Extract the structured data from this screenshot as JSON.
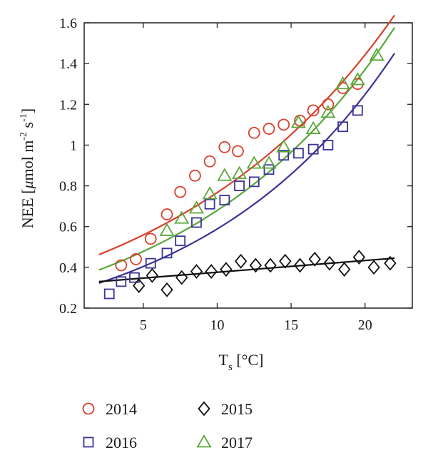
{
  "chart_data": {
    "type": "scatter",
    "xlabel": {
      "main": "T",
      "sub": "s",
      "unit": " [°C]"
    },
    "ylabel": {
      "pre": "NEE [",
      "mu": "μ",
      "mid": "mol m",
      "sup1": "-2",
      "mid2": " s",
      "sup2": "-1",
      "post": "]"
    },
    "xlim": [
      1,
      23.2
    ],
    "ylim": [
      0.2,
      1.6
    ],
    "x_ticks": [
      5,
      10,
      15,
      20
    ],
    "x_tick_labels": [
      "5",
      "10",
      "15",
      "20"
    ],
    "y_ticks": [
      0.2,
      0.4,
      0.6,
      0.8,
      1.0,
      1.2,
      1.4,
      1.6
    ],
    "y_tick_labels": [
      "0.2",
      "0.4",
      "0.6",
      "0.8",
      "1",
      "1.2",
      "1.4",
      "1.6"
    ],
    "grid": false,
    "legend_position": "bottom",
    "series": [
      {
        "name": "2014",
        "marker": "circle",
        "color": "#d9402c",
        "x": [
          3.5,
          4.5,
          5.5,
          6.6,
          7.5,
          8.5,
          9.5,
          10.5,
          11.4,
          12.5,
          13.5,
          14.5,
          15.6,
          16.5,
          17.5,
          18.5,
          19.5
        ],
        "y": [
          0.41,
          0.44,
          0.54,
          0.66,
          0.77,
          0.85,
          0.92,
          0.99,
          0.97,
          1.06,
          1.08,
          1.1,
          1.12,
          1.17,
          1.2,
          1.28,
          1.3
        ],
        "fit": {
          "x": [
            2,
            22
          ],
          "a": 0.4076,
          "b": 0.0632
        }
      },
      {
        "name": "2016",
        "marker": "square",
        "color": "#3a3496",
        "x": [
          2.7,
          3.5,
          4.4,
          5.5,
          6.6,
          7.5,
          8.6,
          9.5,
          10.5,
          11.5,
          12.5,
          13.5,
          14.5,
          15.5,
          16.5,
          17.5,
          18.5,
          19.5
        ],
        "y": [
          0.27,
          0.33,
          0.35,
          0.42,
          0.47,
          0.53,
          0.62,
          0.71,
          0.73,
          0.8,
          0.82,
          0.88,
          0.95,
          0.96,
          0.98,
          1.0,
          1.09,
          1.17
        ],
        "fit": {
          "x": [
            2,
            22
          ],
          "a": 0.2774,
          "b": 0.0752
        }
      },
      {
        "name": "2015",
        "marker": "diamond",
        "color": "#111111",
        "x": [
          4.7,
          5.6,
          6.6,
          7.6,
          8.6,
          9.6,
          10.6,
          11.6,
          12.6,
          13.6,
          14.6,
          15.6,
          16.6,
          17.6,
          18.6,
          19.6,
          20.6,
          21.7
        ],
        "y": [
          0.31,
          0.36,
          0.29,
          0.35,
          0.38,
          0.38,
          0.39,
          0.43,
          0.41,
          0.41,
          0.43,
          0.41,
          0.44,
          0.42,
          0.39,
          0.45,
          0.4,
          0.42
        ],
        "fit": {
          "type": "linear",
          "x": [
            2,
            22
          ],
          "y": [
            0.33,
            0.445
          ]
        }
      },
      {
        "name": "2017",
        "marker": "triangle",
        "color": "#5aa83a",
        "x": [
          6.6,
          7.6,
          8.6,
          9.5,
          10.5,
          11.5,
          12.5,
          13.5,
          14.5,
          15.5,
          16.5,
          17.5,
          18.5,
          19.5,
          20.8
        ],
        "y": [
          0.58,
          0.64,
          0.69,
          0.76,
          0.85,
          0.86,
          0.91,
          0.91,
          0.99,
          1.11,
          1.08,
          1.16,
          1.3,
          1.32,
          1.44
        ],
        "fit": {
          "x": [
            2,
            22
          ],
          "a": 0.3366,
          "b": 0.0702
        }
      }
    ],
    "legend": [
      {
        "name": "2014",
        "marker": "circle",
        "color": "#d9402c"
      },
      {
        "name": "2015",
        "marker": "diamond",
        "color": "#111111"
      },
      {
        "name": "2016",
        "marker": "square",
        "color": "#3a3496"
      },
      {
        "name": "2017",
        "marker": "triangle",
        "color": "#5aa83a"
      }
    ]
  }
}
